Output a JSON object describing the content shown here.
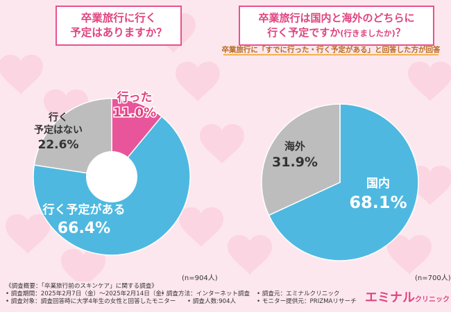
{
  "left_chart": {
    "title_line1": "卒業旅行に行く",
    "title_line2": "予定はありますか？",
    "n_label": "(n=904人)"
  },
  "right_chart": {
    "title_line1": "卒業旅行は国内と海外のどちらに",
    "title_line2": "行く予定ですか",
    "title_line2_small": "(行きましたか)",
    "title_line2_end": "？",
    "subtitle": "卒業旅行に「すでに行った・行く予定がある」と回答した方が回答",
    "n_label": "(n=700人)"
  },
  "footer": {
    "line1": "《調査概要：「卒業旅行前のスキンケア」に関する調査》",
    "line2a": "• 調査期間：2025年2月7日（金）〜2025年2月14日（金）",
    "line2b": "• 調査方法：インターネット調査",
    "line2c": "• 調査元：エミナルクリニック",
    "line3a": "• 調査対象：調査回答時に大学4年生の女性と回答したモニター",
    "line3b": "• 調査人数:904人",
    "line3c": "• モニター提供元：PRIZMAリサーチ"
  },
  "logo": {
    "main": "エミナル",
    "sub": "クリニック"
  },
  "colors": {
    "pink": "#e8559a",
    "blue": "#4fb8e0",
    "gray": "#bdbdbd",
    "accent": "#e0437f"
  },
  "chart_data": [
    {
      "type": "pie",
      "title": "卒業旅行に行く予定はありますか？",
      "donut": true,
      "slices": [
        {
          "label": "すでに行った",
          "value": 11.0,
          "display": "11.0%",
          "color": "#e8559a"
        },
        {
          "label": "行く予定がある",
          "value": 66.4,
          "display": "66.4%",
          "color": "#4fb8e0"
        },
        {
          "label": "行く予定はない",
          "value": 22.6,
          "display": "22.6%",
          "color": "#bdbdbd"
        }
      ]
    },
    {
      "type": "pie",
      "title": "卒業旅行は国内と海外のどちらに行く予定ですか(行きましたか)？",
      "donut": false,
      "slices": [
        {
          "label": "国内",
          "value": 68.1,
          "display": "68.1%",
          "color": "#4fb8e0"
        },
        {
          "label": "海外",
          "value": 31.9,
          "display": "31.9%",
          "color": "#bdbdbd"
        }
      ]
    }
  ]
}
